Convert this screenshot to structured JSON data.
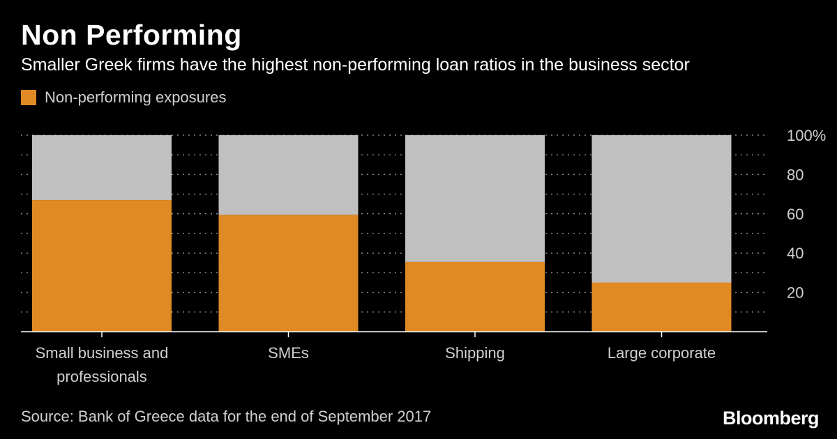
{
  "header": {
    "title": "Non Performing",
    "subtitle": "Smaller Greek firms have the highest non-performing loan ratios in the business sector"
  },
  "legend": {
    "label": "Non-performing exposures"
  },
  "footer": {
    "source": "Source: Bank of Greece data for the end of September 2017",
    "brand": "Bloomberg"
  },
  "colors": {
    "background": "#000000",
    "np_bar": "#e08a26",
    "total_bar": "#c0c0c0",
    "grid": "#8a8a8a",
    "axis_text": "#d0d0d0"
  },
  "chart_data": {
    "type": "bar",
    "stacked": true,
    "title": "Non Performing",
    "subtitle": "Smaller Greek firms have the highest non-performing loan ratios in the business sector",
    "categories": [
      [
        "Small business and",
        "professionals"
      ],
      [
        "SMEs"
      ],
      [
        "Shipping"
      ],
      [
        "Large corporate"
      ]
    ],
    "series": [
      {
        "name": "Non-performing exposures",
        "values": [
          67,
          59.5,
          35.5,
          25
        ],
        "color": "#e08a26"
      },
      {
        "values": [
          33,
          40.5,
          64.5,
          75
        ],
        "color": "#c0c0c0"
      }
    ],
    "ylim": [
      0,
      100
    ],
    "yticks": [
      20,
      40,
      60,
      80,
      100
    ],
    "ytick_labels": [
      "20",
      "40",
      "60",
      "80",
      "100%"
    ],
    "y_axis_position": "right",
    "grid": true,
    "legend_position": "top-left"
  }
}
